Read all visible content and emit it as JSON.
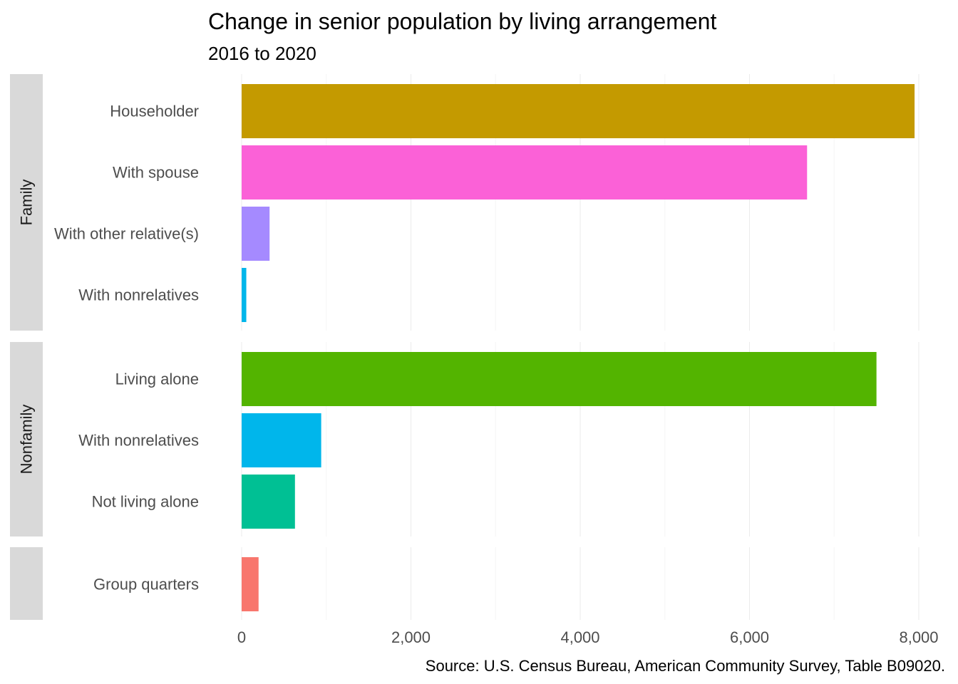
{
  "chart_data": {
    "type": "bar",
    "orientation": "horizontal",
    "title": "Change in senior population by living arrangement",
    "subtitle": "2016 to 2020",
    "caption": "Source: U.S. Census Bureau, American Community Survey, Table B09020.",
    "xlim": [
      0,
      8000
    ],
    "x_ticks": [
      0,
      2000,
      4000,
      6000,
      8000
    ],
    "x_tick_labels": [
      "0",
      "2,000",
      "4,000",
      "6,000",
      "8,000"
    ],
    "grid": true,
    "legend": "none",
    "facets": [
      {
        "label": "Family",
        "bars": [
          {
            "category": "Householder",
            "value": 7950,
            "color": "#C49A00"
          },
          {
            "category": "With spouse",
            "value": 6680,
            "color": "#FB61D7"
          },
          {
            "category": "With other relative(s)",
            "value": 330,
            "color": "#A58AFF"
          },
          {
            "category": "With nonrelatives",
            "value": 55,
            "color": "#00B6EB"
          }
        ]
      },
      {
        "label": "Nonfamily",
        "bars": [
          {
            "category": "Living alone",
            "value": 7500,
            "color": "#53B400"
          },
          {
            "category": "With nonrelatives",
            "value": 940,
            "color": "#00B6EB"
          },
          {
            "category": "Not living alone",
            "value": 630,
            "color": "#00C094"
          }
        ]
      },
      {
        "label": "",
        "bars": [
          {
            "category": "Group quarters",
            "value": 200,
            "color": "#F8766D"
          }
        ]
      }
    ]
  }
}
